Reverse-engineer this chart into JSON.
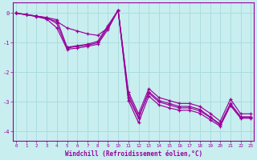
{
  "xlabel": "Windchill (Refroidissement éolien,°C)",
  "bg_color": "#c8eef0",
  "line_color": "#990099",
  "grid_color": "#aadddd",
  "xlim": [
    -0.3,
    23.3
  ],
  "ylim": [
    -4.3,
    0.35
  ],
  "yticks": [
    0,
    -1,
    -2,
    -3,
    -4
  ],
  "xticks": [
    0,
    1,
    2,
    3,
    4,
    5,
    6,
    7,
    8,
    9,
    10,
    11,
    12,
    13,
    14,
    15,
    16,
    17,
    18,
    19,
    20,
    21,
    22,
    23
  ],
  "series": [
    [
      0.0,
      -0.05,
      -0.1,
      -0.18,
      -0.28,
      -0.5,
      -0.6,
      -0.7,
      -0.75,
      -0.5,
      0.1,
      -2.85,
      -3.55,
      -2.65,
      -2.95,
      -3.05,
      -3.15,
      -3.15,
      -3.25,
      -3.5,
      -3.75,
      -3.05,
      -3.5,
      -3.5
    ],
    [
      0.0,
      -0.05,
      -0.1,
      -0.15,
      -0.22,
      -1.15,
      -1.1,
      -1.05,
      -0.95,
      -0.42,
      0.1,
      -2.65,
      -3.4,
      -2.55,
      -2.85,
      -2.95,
      -3.05,
      -3.05,
      -3.15,
      -3.38,
      -3.65,
      -2.9,
      -3.4,
      -3.4
    ],
    [
      0.0,
      -0.05,
      -0.12,
      -0.2,
      -0.5,
      -1.22,
      -1.18,
      -1.12,
      -1.05,
      -0.55,
      0.1,
      -2.95,
      -3.7,
      -2.8,
      -3.1,
      -3.2,
      -3.28,
      -3.28,
      -3.38,
      -3.6,
      -3.82,
      -3.12,
      -3.55,
      -3.55
    ],
    [
      0.0,
      -0.05,
      -0.1,
      -0.15,
      -0.35,
      -1.18,
      -1.12,
      -1.08,
      -1.0,
      -0.48,
      0.1,
      -2.75,
      -3.5,
      -2.7,
      -3.0,
      -3.1,
      -3.2,
      -3.2,
      -3.3,
      -3.52,
      -3.78,
      -3.08,
      -3.52,
      -3.52
    ]
  ]
}
